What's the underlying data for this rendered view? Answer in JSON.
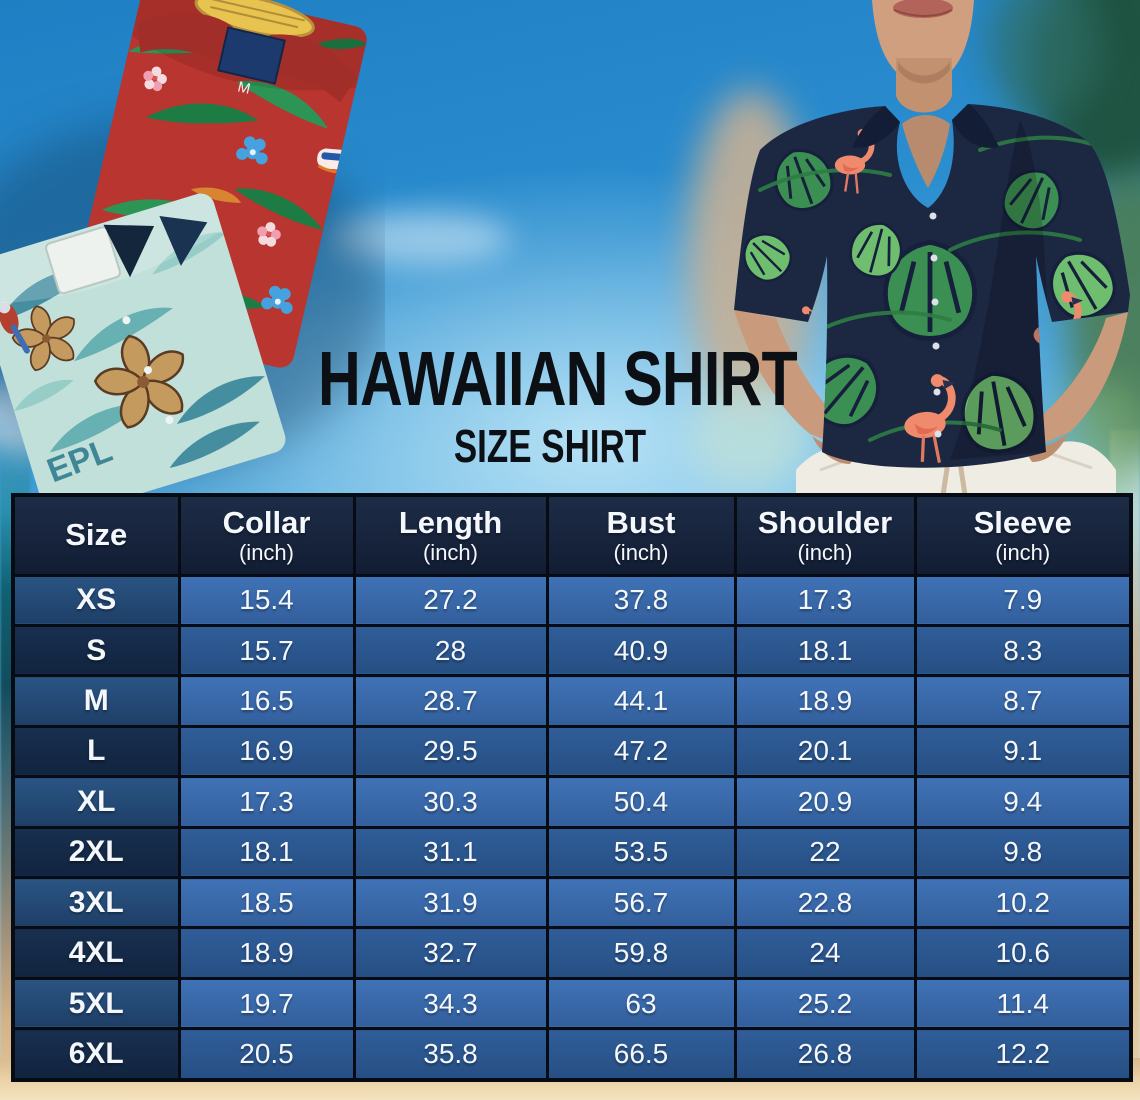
{
  "title": {
    "main": "HAWAIIAN SHIRT",
    "subtitle": "SIZE SHIRT"
  },
  "shirts": {
    "red": {
      "size_tag": "M"
    },
    "teal": {
      "print_text": "EPL"
    }
  },
  "table": {
    "columns": [
      {
        "label": "Size",
        "unit": ""
      },
      {
        "label": "Collar",
        "unit": "(inch)"
      },
      {
        "label": "Length",
        "unit": "(inch)"
      },
      {
        "label": "Bust",
        "unit": "(inch)"
      },
      {
        "label": "Shoulder",
        "unit": "(inch)"
      },
      {
        "label": "Sleeve",
        "unit": "(inch)"
      }
    ],
    "rows": [
      {
        "size": "XS",
        "collar": "15.4",
        "length": "27.2",
        "bust": "37.8",
        "shoulder": "17.3",
        "sleeve": "7.9"
      },
      {
        "size": "S",
        "collar": "15.7",
        "length": "28",
        "bust": "40.9",
        "shoulder": "18.1",
        "sleeve": "8.3"
      },
      {
        "size": "M",
        "collar": "16.5",
        "length": "28.7",
        "bust": "44.1",
        "shoulder": "18.9",
        "sleeve": "8.7"
      },
      {
        "size": "L",
        "collar": "16.9",
        "length": "29.5",
        "bust": "47.2",
        "shoulder": "20.1",
        "sleeve": "9.1"
      },
      {
        "size": "XL",
        "collar": "17.3",
        "length": "30.3",
        "bust": "50.4",
        "shoulder": "20.9",
        "sleeve": "9.4"
      },
      {
        "size": "2XL",
        "collar": "18.1",
        "length": "31.1",
        "bust": "53.5",
        "shoulder": "22",
        "sleeve": "9.8"
      },
      {
        "size": "3XL",
        "collar": "18.5",
        "length": "31.9",
        "bust": "56.7",
        "shoulder": "22.8",
        "sleeve": "10.2"
      },
      {
        "size": "4XL",
        "collar": "18.9",
        "length": "32.7",
        "bust": "59.8",
        "shoulder": "24",
        "sleeve": "10.6"
      },
      {
        "size": "5XL",
        "collar": "19.7",
        "length": "34.3",
        "bust": "63",
        "shoulder": "25.2",
        "sleeve": "11.4"
      },
      {
        "size": "6XL",
        "collar": "20.5",
        "length": "35.8",
        "bust": "66.5",
        "shoulder": "26.8",
        "sleeve": "12.2"
      }
    ]
  },
  "chart_data": {
    "type": "table",
    "title": "Hawaiian Shirt Size Shirt",
    "categories": [
      "XS",
      "S",
      "M",
      "L",
      "XL",
      "2XL",
      "3XL",
      "4XL",
      "5XL",
      "6XL"
    ],
    "series": [
      {
        "name": "Collar (inch)",
        "values": [
          15.4,
          15.7,
          16.5,
          16.9,
          17.3,
          18.1,
          18.5,
          18.9,
          19.7,
          20.5
        ]
      },
      {
        "name": "Length (inch)",
        "values": [
          27.2,
          28,
          28.7,
          29.5,
          30.3,
          31.1,
          31.9,
          32.7,
          34.3,
          35.8
        ]
      },
      {
        "name": "Bust (inch)",
        "values": [
          37.8,
          40.9,
          44.1,
          47.2,
          50.4,
          53.5,
          56.7,
          59.8,
          63,
          66.5
        ]
      },
      {
        "name": "Shoulder (inch)",
        "values": [
          17.3,
          18.1,
          18.9,
          20.1,
          20.9,
          22,
          22.8,
          24,
          25.2,
          26.8
        ]
      },
      {
        "name": "Sleeve (inch)",
        "values": [
          7.9,
          8.3,
          8.7,
          9.1,
          9.4,
          9.8,
          10.2,
          10.6,
          11.4,
          12.2
        ]
      }
    ]
  },
  "colors": {
    "header_navy": "#16243c",
    "row_blue_light": "#3a6db4",
    "row_blue_dark": "#2b5590",
    "size_navy_light": "#234a74",
    "size_navy_dark": "#13294a",
    "border_black": "#070c14",
    "sky_blue": "#2f93d2",
    "sand": "#ecd3a8",
    "title_black": "#0c1014"
  }
}
